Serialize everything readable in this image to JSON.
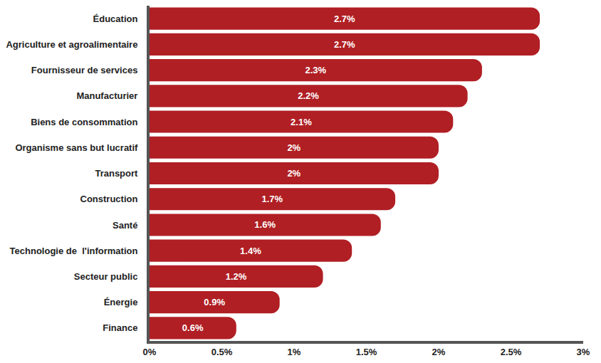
{
  "chart_data": {
    "type": "bar",
    "orientation": "horizontal",
    "categories": [
      "Éducation",
      "Agriculture et agroalimentaire",
      "Fournisseur de services",
      "Manufacturier",
      "Biens de consommation",
      "Organisme sans but lucratif",
      "Transport",
      "Construction",
      "Santé",
      "Technologie de  l'information",
      "Secteur public",
      "Énergie",
      "Finance"
    ],
    "values": [
      2.7,
      2.7,
      2.3,
      2.2,
      2.1,
      2,
      2,
      1.7,
      1.6,
      1.4,
      1.2,
      0.9,
      0.6
    ],
    "value_labels": [
      "2.7%",
      "2.7%",
      "2.3%",
      "2.2%",
      "2.1%",
      "2%",
      "2%",
      "1.7%",
      "1.6%",
      "1.4%",
      "1.2%",
      "0.9%",
      "0.6%"
    ],
    "color": "#b01f24",
    "xlim": [
      0,
      3
    ],
    "xticks": [
      {
        "value": 0,
        "label": "0%"
      },
      {
        "value": 0.5,
        "label": "0.5%"
      },
      {
        "value": 1,
        "label": "1%"
      },
      {
        "value": 1.5,
        "label": "1.5%"
      },
      {
        "value": 2,
        "label": "2%"
      },
      {
        "value": 2.5,
        "label": "2.5%"
      },
      {
        "value": 3,
        "label": "3%"
      }
    ],
    "grid": false,
    "data_labels": true
  }
}
